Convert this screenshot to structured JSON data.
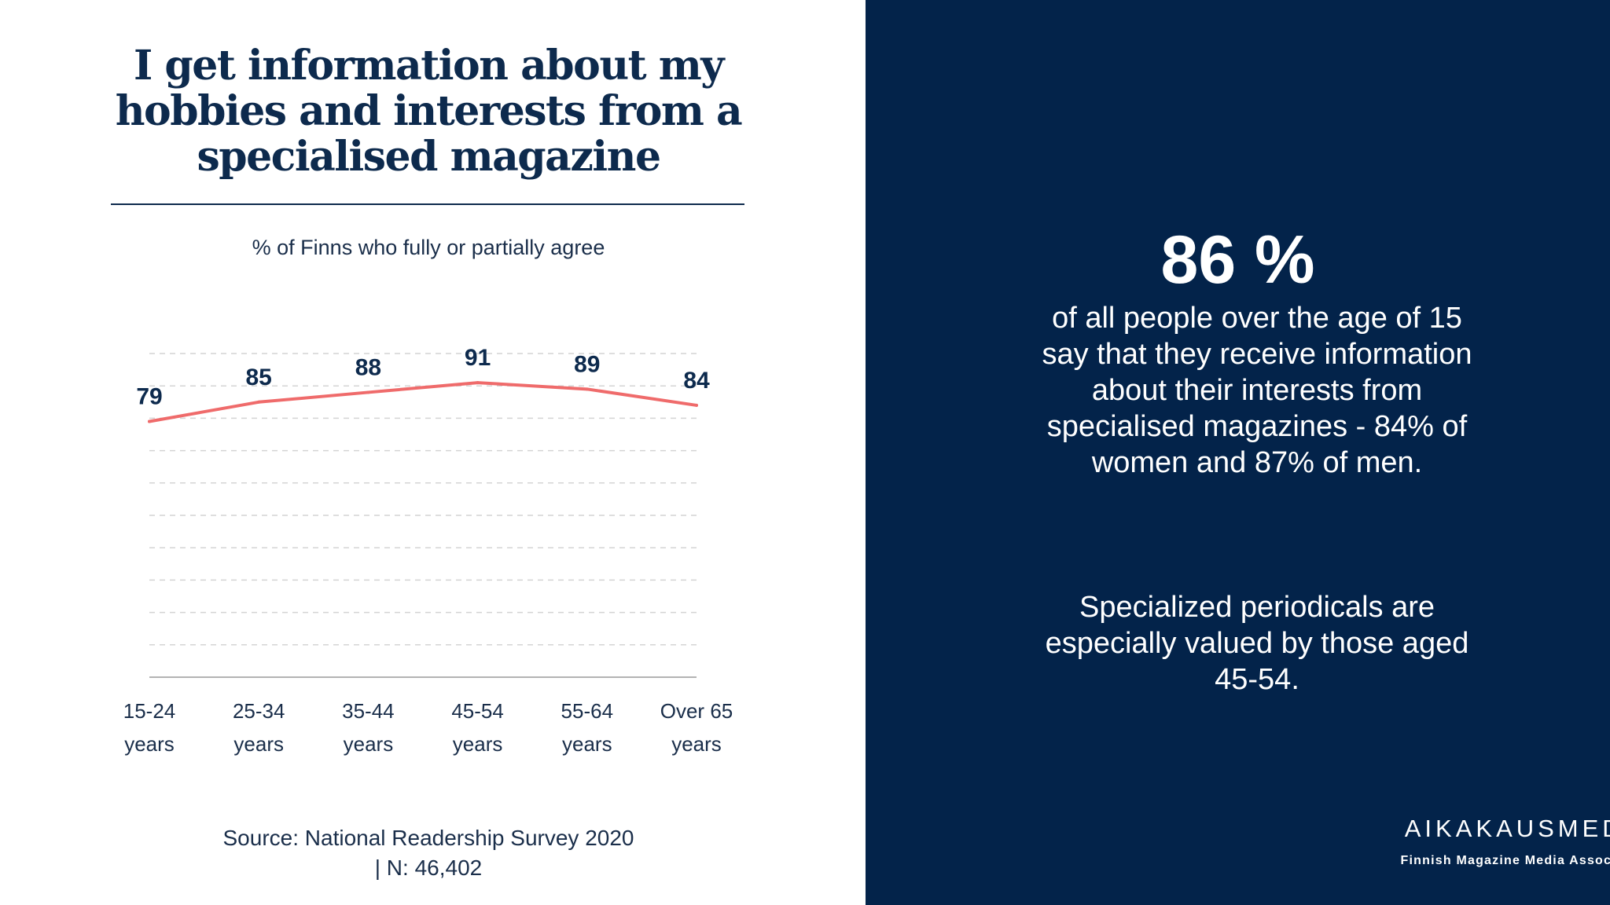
{
  "chart_data": {
    "type": "line",
    "title": "I get information about my hobbies and interests from a specialised magazine",
    "subtitle": "% of Finns who fully or partially agree",
    "categories": [
      [
        "15-24",
        "years"
      ],
      [
        "25-34",
        "years"
      ],
      [
        "35-44",
        "years"
      ],
      [
        "45-54",
        "years"
      ],
      [
        "55-64",
        "years"
      ],
      [
        "Over 65",
        "years"
      ]
    ],
    "series": [
      {
        "values": [
          79,
          85,
          88,
          91,
          89,
          84
        ],
        "color": "#ef6b6b"
      }
    ],
    "ylim": [
      0,
      100
    ],
    "grid": true,
    "grid_style": "dashed",
    "data_labels": true,
    "label_color": "#0d2a4d",
    "source": "Source: National Readership Survey 2020",
    "sample": "|  N: 46,402"
  },
  "sidebar": {
    "stat": "86 %",
    "description": "of all people over the age of 15 say that they receive information about their interests from specialised magazines - 84% of women and 87% of men.",
    "note": "Specialized periodicals are especially valued by those aged 45-54.",
    "background_color": "#03234a"
  },
  "brand": {
    "name": "AIKAKAUSMEDIA",
    "tagline": "Finnish Magazine Media Association"
  }
}
